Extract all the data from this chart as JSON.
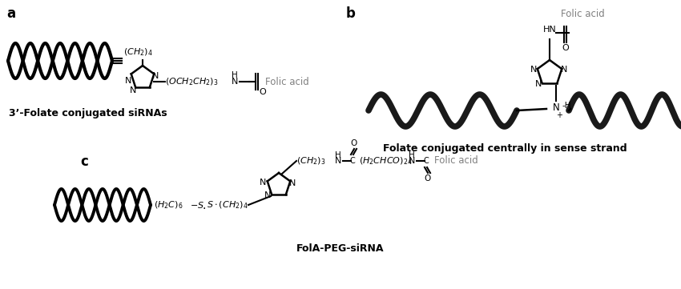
{
  "background_color": "#ffffff",
  "panel_labels": [
    "a",
    "b",
    "c"
  ],
  "caption_a": "3’-Folate conjugated siRNAs",
  "caption_b": "Folate conjugated centrally in sense strand",
  "caption_c": "FolA-PEG-siRNA",
  "folic_acid_label_color": "#808080",
  "fig_width": 8.5,
  "fig_height": 3.61,
  "dpi": 100
}
